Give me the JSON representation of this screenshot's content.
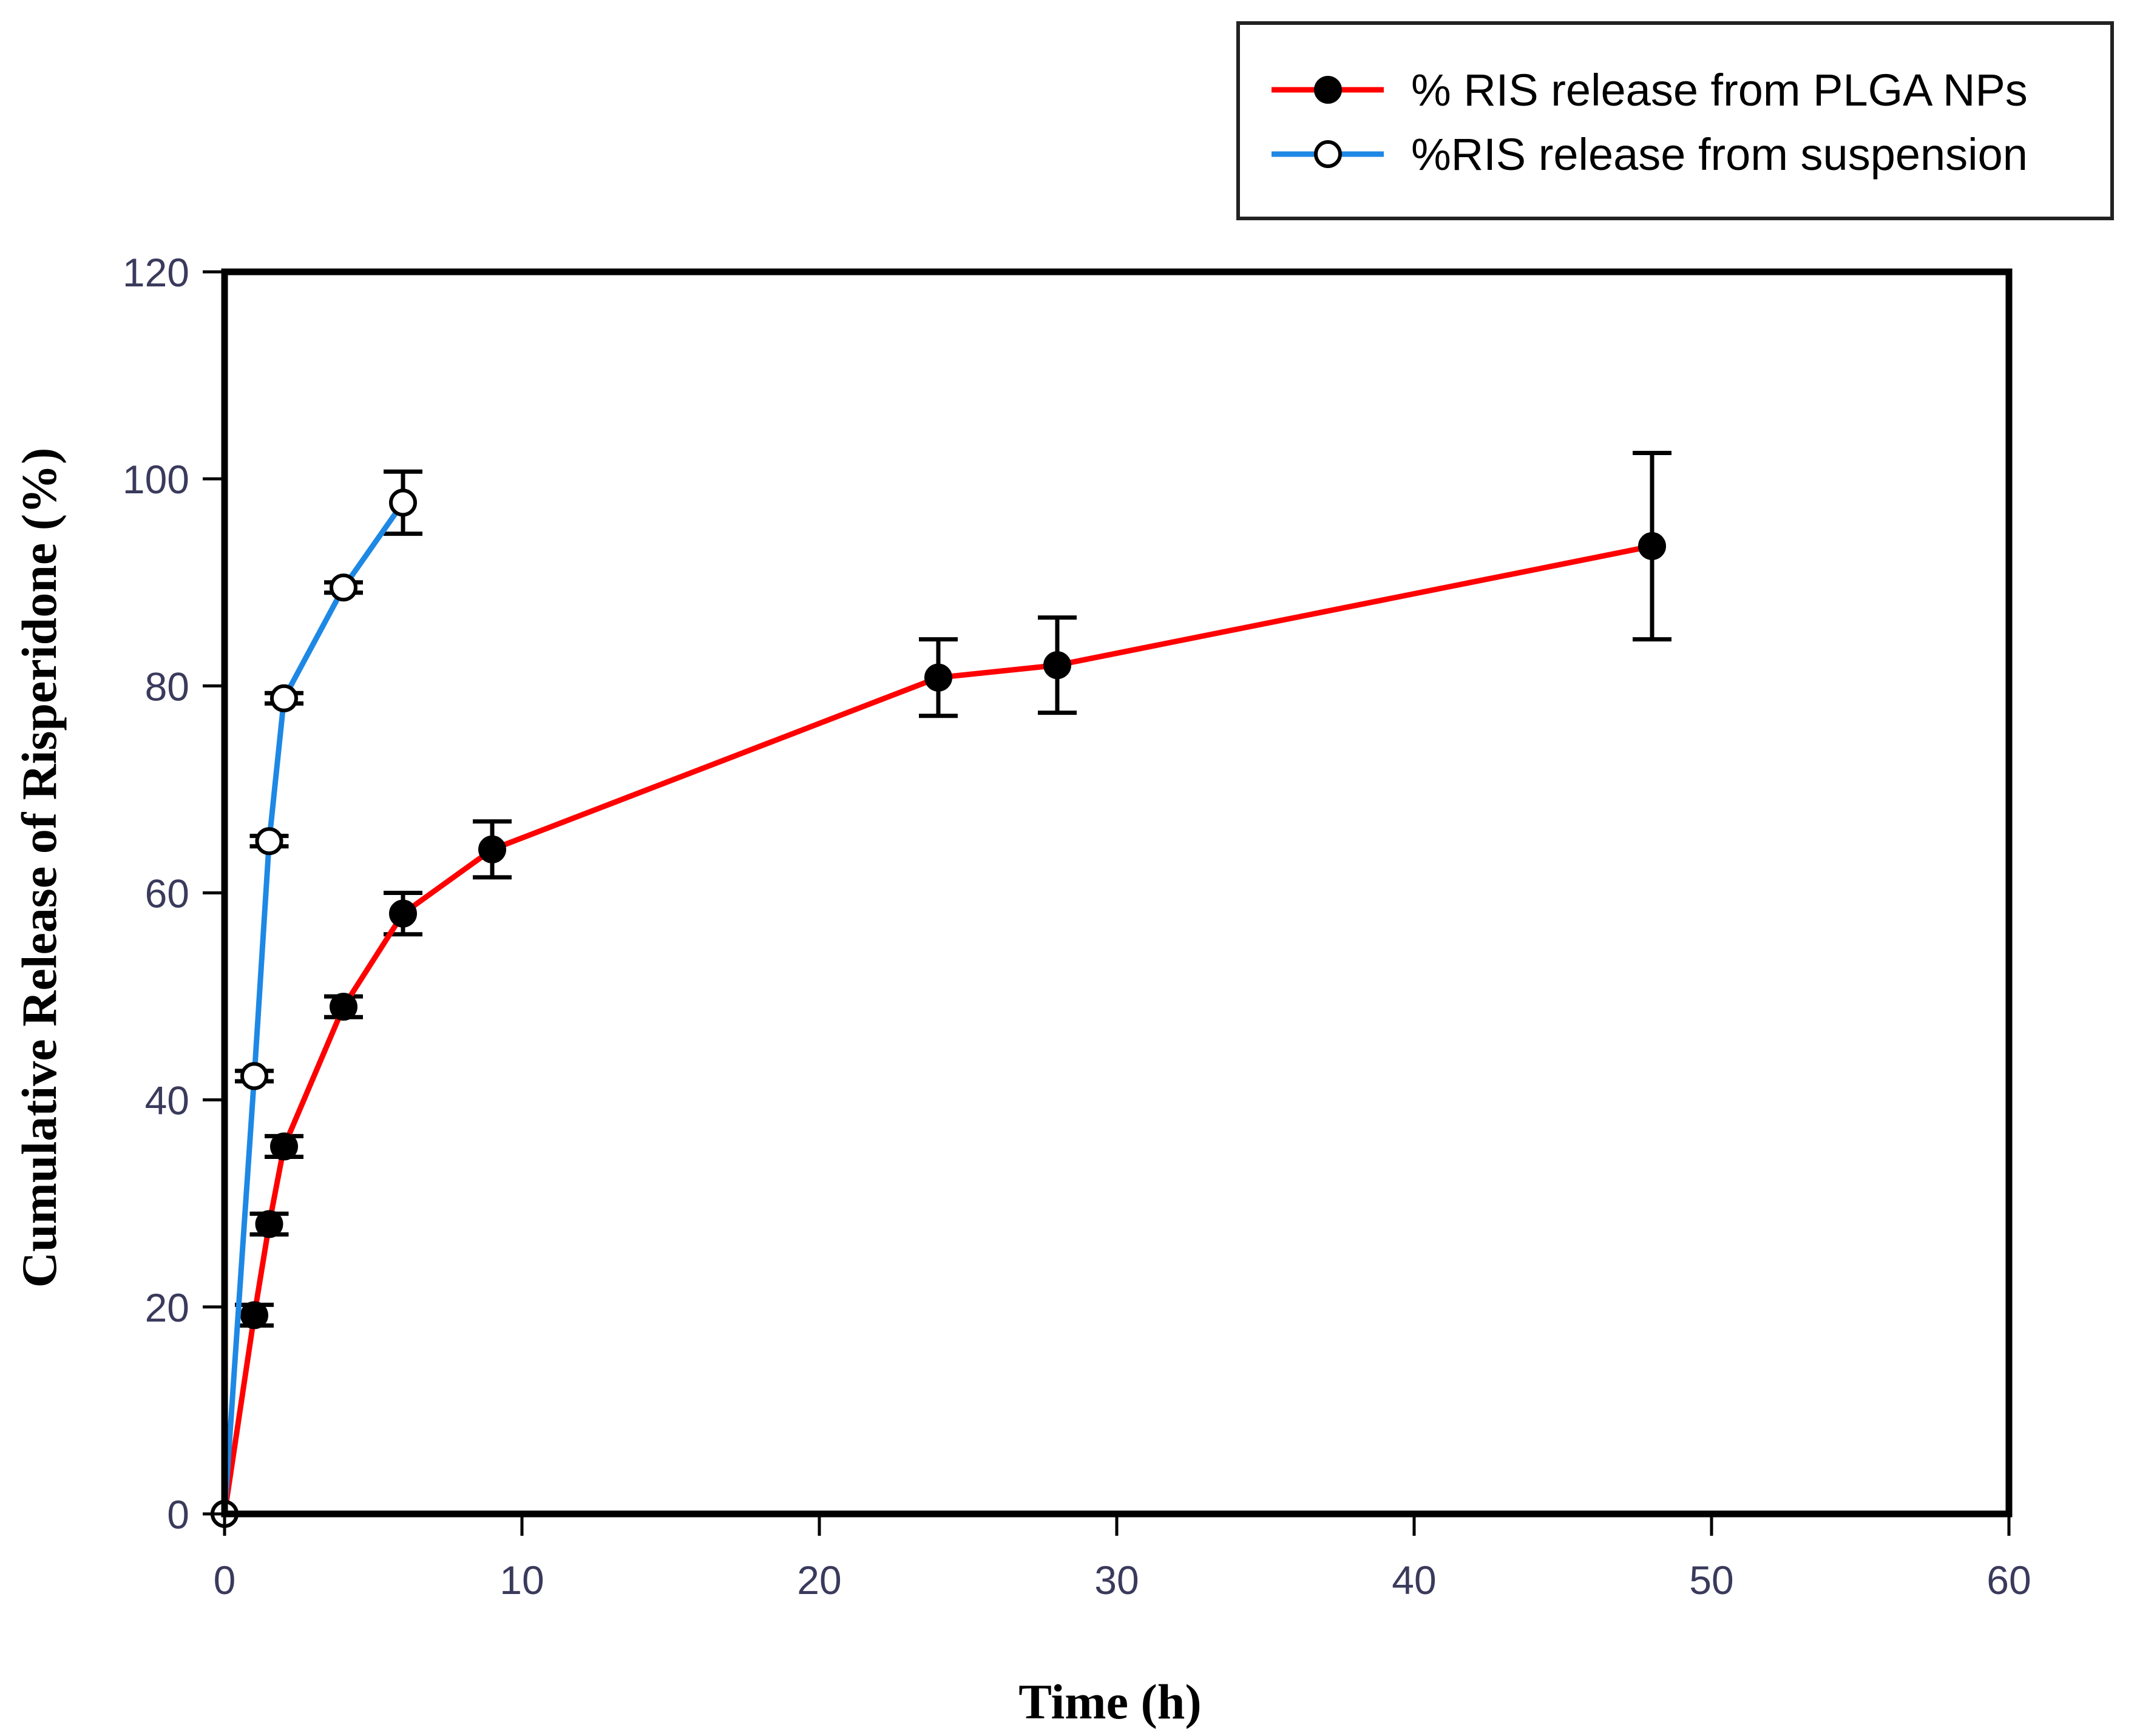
{
  "chart_data": {
    "type": "line",
    "title": "",
    "xlabel": "Time (h)",
    "ylabel": "Cumulative Release of Risperidone (%)",
    "xlim": [
      0,
      60
    ],
    "ylim": [
      0,
      120
    ],
    "xticks": [
      0,
      10,
      20,
      30,
      40,
      50,
      60
    ],
    "yticks": [
      0,
      20,
      40,
      60,
      80,
      100,
      120
    ],
    "grid": false,
    "legend_position": "top-right",
    "series": [
      {
        "name": "% RIS release from PLGA NPs",
        "color": "#ff0000",
        "marker": "filled-circle",
        "x": [
          0,
          1,
          1.5,
          2,
          4,
          6,
          9,
          24,
          28,
          48
        ],
        "y": [
          0,
          19.2,
          28,
          35.5,
          49,
          58,
          64.2,
          80.8,
          82,
          93.5
        ],
        "error": [
          0,
          1,
          1,
          1,
          1,
          2,
          2.7,
          3.7,
          4.6,
          9
        ]
      },
      {
        "name": "%RIS release from suspension",
        "color": "#1e88e5",
        "marker": "open-circle",
        "x": [
          0,
          1,
          1.5,
          2,
          4,
          6
        ],
        "y": [
          0,
          42.3,
          65,
          78.8,
          89.5,
          97.7
        ],
        "error": [
          0,
          0.5,
          0.5,
          0.5,
          0.5,
          3
        ]
      }
    ]
  }
}
